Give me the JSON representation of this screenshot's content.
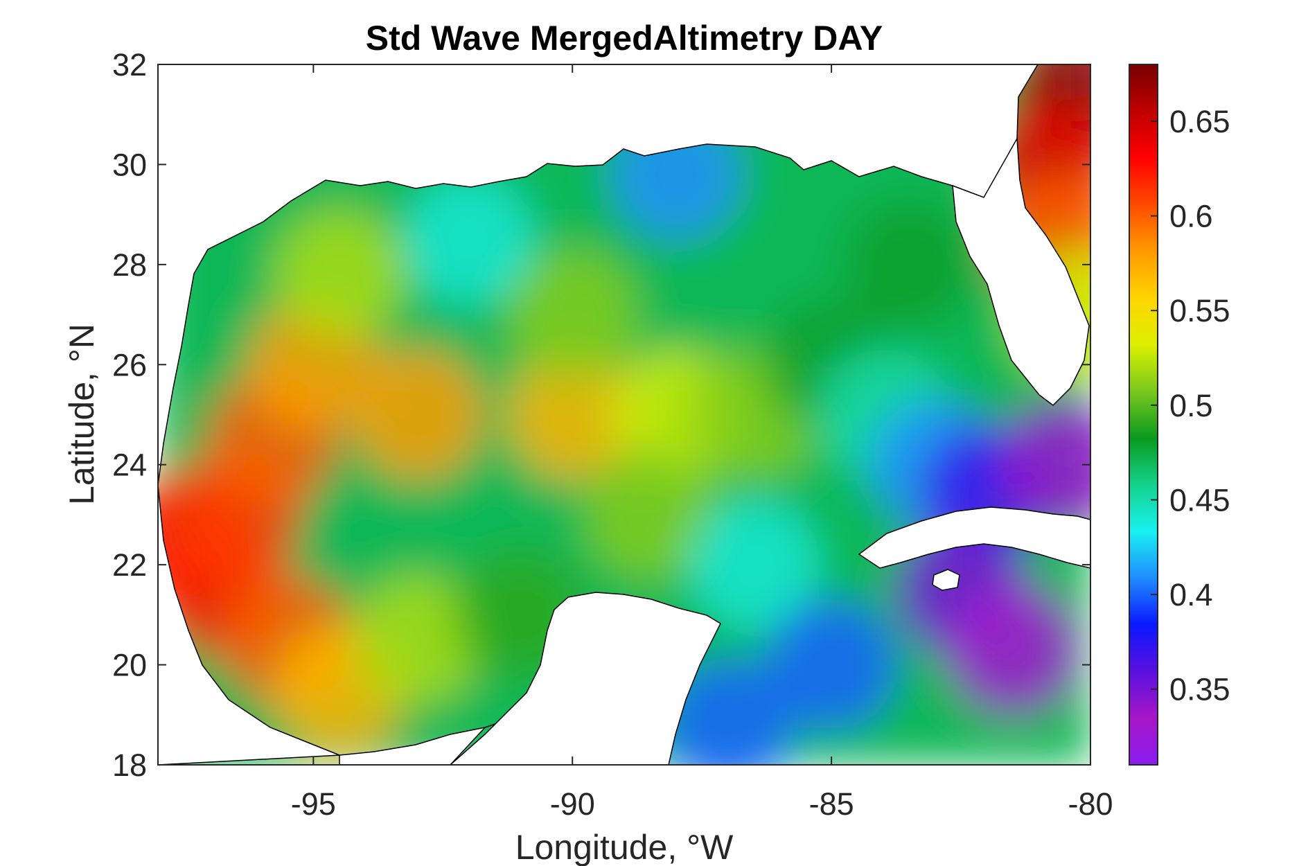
{
  "chart_data": {
    "type": "heatmap",
    "title": "Std Wave MergedAltimetry DAY",
    "xlabel": "Longitude, °W",
    "ylabel": "Latitude, °N",
    "xlim": [
      -98,
      -80
    ],
    "ylim": [
      18,
      32
    ],
    "x_ticks": [
      -95,
      -90,
      -85,
      -80
    ],
    "y_ticks": [
      18,
      20,
      22,
      24,
      26,
      28,
      30,
      32
    ],
    "x_tick_labels": [
      "-95",
      "-90",
      "-85",
      "-80"
    ],
    "y_tick_labels": [
      "18",
      "20",
      "22",
      "24",
      "26",
      "28",
      "30",
      "32"
    ],
    "colorbar": {
      "range": [
        0.31,
        0.68
      ],
      "ticks": [
        0.35,
        0.4,
        0.45,
        0.5,
        0.55,
        0.6,
        0.65
      ],
      "tick_labels": [
        "0.35",
        "0.4",
        "0.45",
        "0.5",
        "0.55",
        "0.6",
        "0.65"
      ],
      "colormap": [
        "#8a1cf0",
        "#a716c8",
        "#5a10e0",
        "#0a18ff",
        "#1f8cff",
        "#19f0f0",
        "#14d28c",
        "#0a9a1e",
        "#7ac81e",
        "#dcf000",
        "#ffd400",
        "#ff9a00",
        "#ff4a00",
        "#ff0000",
        "#c00000",
        "#780000"
      ]
    },
    "field_points": [
      {
        "lon": -97.5,
        "lat": 22.5,
        "value": 0.63
      },
      {
        "lon": -96.8,
        "lat": 21.5,
        "value": 0.62
      },
      {
        "lon": -96.5,
        "lat": 23.0,
        "value": 0.61
      },
      {
        "lon": -95.8,
        "lat": 24.5,
        "value": 0.6
      },
      {
        "lon": -95.5,
        "lat": 20.5,
        "value": 0.6
      },
      {
        "lon": -95.0,
        "lat": 26.0,
        "value": 0.58
      },
      {
        "lon": -93.0,
        "lat": 25.0,
        "value": 0.58
      },
      {
        "lon": -94.5,
        "lat": 19.5,
        "value": 0.57
      },
      {
        "lon": -90.0,
        "lat": 25.0,
        "value": 0.57
      },
      {
        "lon": -94.5,
        "lat": 27.8,
        "value": 0.52
      },
      {
        "lon": -93.0,
        "lat": 20.5,
        "value": 0.52
      },
      {
        "lon": -88.0,
        "lat": 25.0,
        "value": 0.53
      },
      {
        "lon": -86.5,
        "lat": 25.0,
        "value": 0.51
      },
      {
        "lon": -90.0,
        "lat": 27.0,
        "value": 0.51
      },
      {
        "lon": -88.5,
        "lat": 23.0,
        "value": 0.51
      },
      {
        "lon": -91.0,
        "lat": 21.0,
        "value": 0.49
      },
      {
        "lon": -85.0,
        "lat": 26.0,
        "value": 0.48
      },
      {
        "lon": -83.5,
        "lat": 28.0,
        "value": 0.48
      },
      {
        "lon": -84.0,
        "lat": 25.0,
        "value": 0.45
      },
      {
        "lon": -92.0,
        "lat": 28.5,
        "value": 0.44
      },
      {
        "lon": -86.5,
        "lat": 22.0,
        "value": 0.44
      },
      {
        "lon": -88.0,
        "lat": 29.8,
        "value": 0.41
      },
      {
        "lon": -83.0,
        "lat": 24.0,
        "value": 0.41
      },
      {
        "lon": -85.0,
        "lat": 20.0,
        "value": 0.4
      },
      {
        "lon": -87.0,
        "lat": 18.8,
        "value": 0.4
      },
      {
        "lon": -82.0,
        "lat": 23.5,
        "value": 0.37
      },
      {
        "lon": -82.5,
        "lat": 21.5,
        "value": 0.35
      },
      {
        "lon": -81.5,
        "lat": 20.3,
        "value": 0.33
      },
      {
        "lon": -80.5,
        "lat": 24.0,
        "value": 0.34
      },
      {
        "lon": -80.3,
        "lat": 31.5,
        "value": 0.67
      },
      {
        "lon": -80.8,
        "lat": 30.0,
        "value": 0.64
      },
      {
        "lon": -80.6,
        "lat": 28.5,
        "value": 0.6
      },
      {
        "lon": -80.2,
        "lat": 27.0,
        "value": 0.53
      }
    ],
    "grid": false,
    "legend": "colorbar-right"
  }
}
